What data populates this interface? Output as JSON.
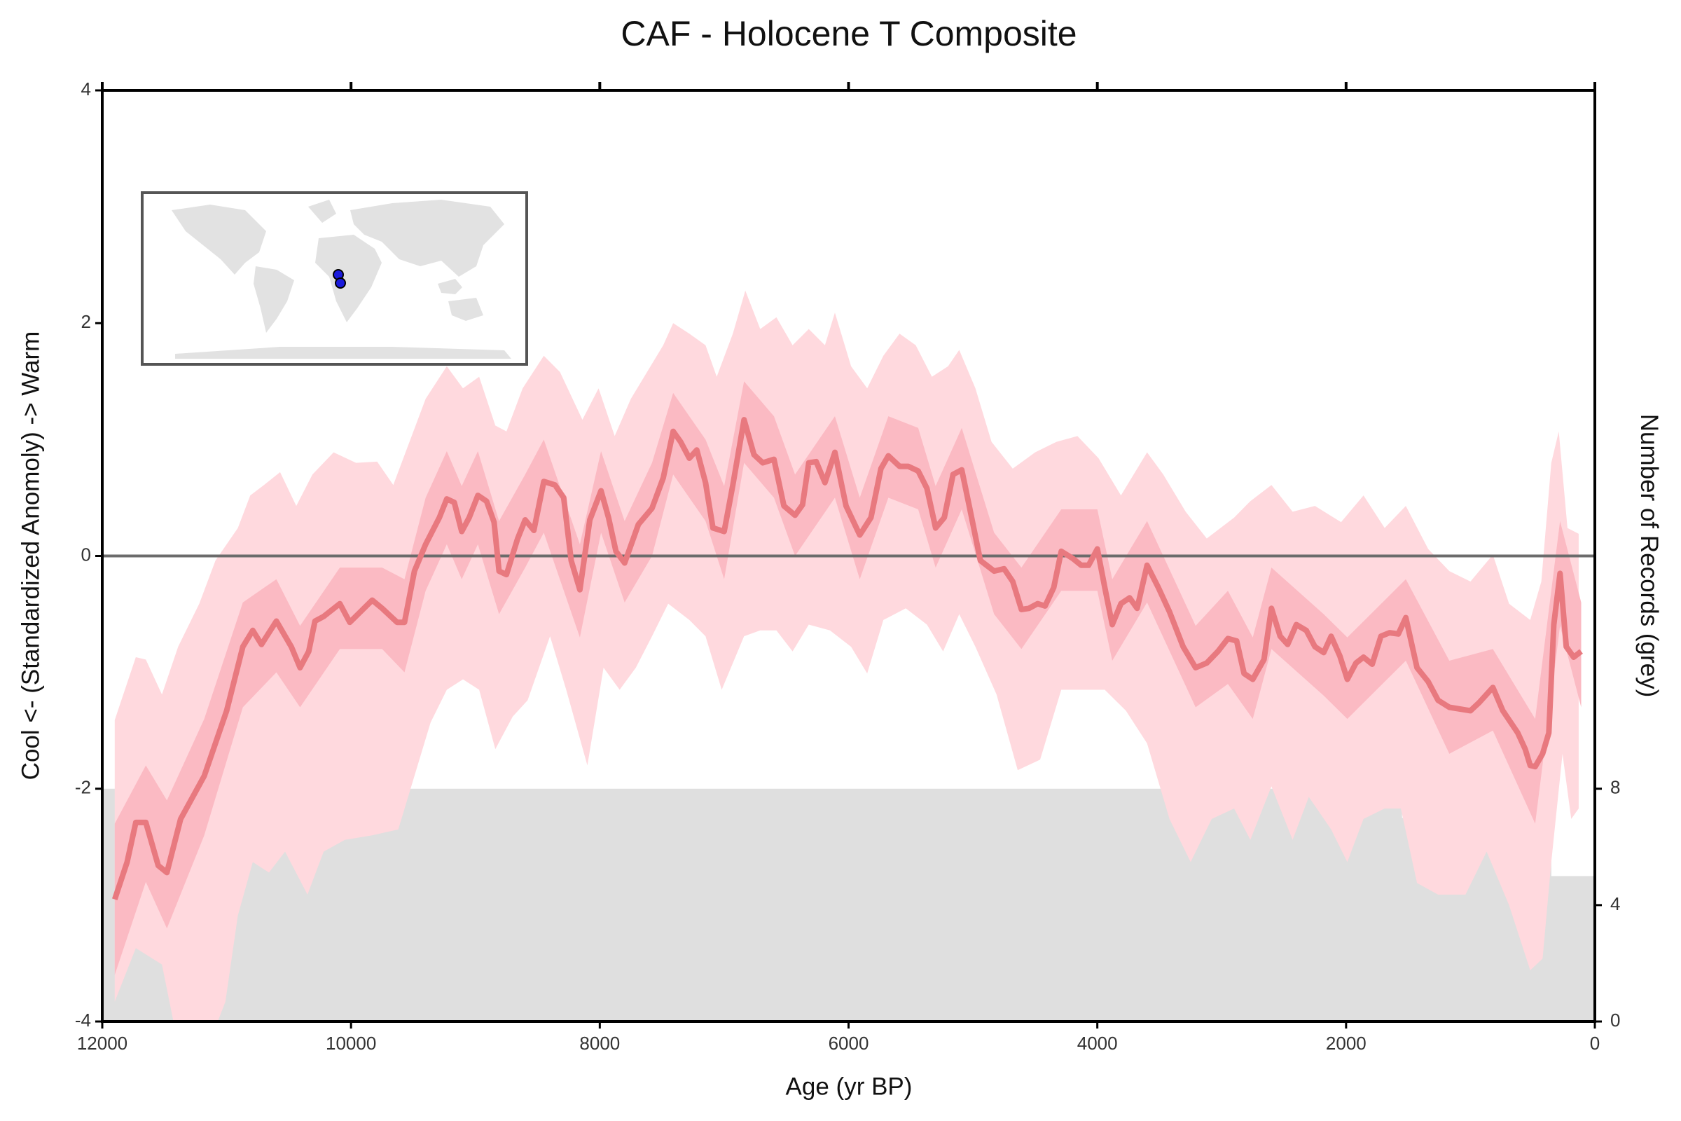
{
  "chart_data": {
    "type": "line",
    "title": "CAF - Holocene T Composite",
    "xlabel": "Age (yr BP)",
    "ylabel": "Cool <- (Standardized Anomoly) -> Warm",
    "y2label": "Number of Records (grey)",
    "xlim": [
      12000,
      0
    ],
    "xticks": [
      12000,
      10000,
      8000,
      6000,
      4000,
      2000,
      0
    ],
    "ylim": [
      -4,
      4
    ],
    "yticks": [
      -4,
      -2,
      0,
      2,
      4
    ],
    "y2lim": [
      0,
      32
    ],
    "y2ticks": [
      0,
      4,
      8
    ],
    "reference_line": 0,
    "series": [
      {
        "kind": "step-area",
        "axis": "y2",
        "color": "#dfdfdf",
        "x": [
          12000,
          1550,
          350
        ],
        "values": [
          8,
          7,
          5
        ]
      },
      {
        "kind": "band",
        "color": "#ffd9de",
        "upper": {
          "x": [
            11900,
            11730,
            11650,
            11520,
            11390,
            11220,
            11090,
            10910,
            10810,
            10700,
            10570,
            10440,
            10310,
            10140,
            9960,
            9790,
            9660,
            9530,
            9400,
            9230,
            9100,
            8970,
            8840,
            8750,
            8620,
            8450,
            8320,
            8140,
            8010,
            7880,
            7750,
            7620,
            7490,
            7410,
            7280,
            7150,
            7060,
            6930,
            6830,
            6710,
            6580,
            6450,
            6320,
            6190,
            6110,
            5980,
            5850,
            5720,
            5590,
            5460,
            5330,
            5200,
            5110,
            4980,
            4850,
            4680,
            4500,
            4330,
            4160,
            3990,
            3810,
            3600,
            3470,
            3290,
            3120,
            2900,
            2770,
            2600,
            2430,
            2250,
            2040,
            1860,
            1690,
            1520,
            1340,
            1170,
            1000,
            820,
            690,
            520,
            430,
            350,
            290,
            220,
            130
          ],
          "values": [
            -1.41,
            -0.87,
            -0.89,
            -1.19,
            -0.78,
            -0.41,
            -0.04,
            0.24,
            0.52,
            0.61,
            0.72,
            0.43,
            0.7,
            0.89,
            0.8,
            0.81,
            0.61,
            0.98,
            1.35,
            1.63,
            1.44,
            1.54,
            1.12,
            1.07,
            1.44,
            1.72,
            1.58,
            1.17,
            1.44,
            1.03,
            1.35,
            1.58,
            1.81,
            2.0,
            1.91,
            1.81,
            1.54,
            1.91,
            2.28,
            1.95,
            2.05,
            1.81,
            1.95,
            1.81,
            2.09,
            1.63,
            1.44,
            1.72,
            1.91,
            1.81,
            1.54,
            1.63,
            1.77,
            1.44,
            0.98,
            0.75,
            0.89,
            0.98,
            1.03,
            0.84,
            0.52,
            0.89,
            0.7,
            0.38,
            0.15,
            0.33,
            0.47,
            0.61,
            0.38,
            0.43,
            0.29,
            0.52,
            0.24,
            0.43,
            0.06,
            -0.13,
            -0.22,
            0.01,
            -0.41,
            -0.55,
            -0.22,
            0.8,
            1.07,
            0.24,
            0.19
          ]
        },
        "lower": {
          "x": [
            11900,
            11730,
            11520,
            11390,
            11180,
            11010,
            10910,
            10790,
            10660,
            10530,
            10350,
            10220,
            10050,
            9830,
            9620,
            9490,
            9360,
            9230,
            9100,
            8970,
            8840,
            8700,
            8580,
            8400,
            8270,
            8100,
            7970,
            7840,
            7710,
            7580,
            7450,
            7280,
            7150,
            7020,
            6840,
            6710,
            6580,
            6450,
            6320,
            6150,
            5980,
            5850,
            5720,
            5540,
            5370,
            5240,
            5110,
            4980,
            4810,
            4640,
            4460,
            4290,
            4120,
            3940,
            3770,
            3600,
            3420,
            3250,
            3080,
            2900,
            2770,
            2600,
            2430,
            2300,
            2120,
            1990,
            1860,
            1690,
            1560,
            1430,
            1260,
            1040,
            870,
            690,
            520,
            420,
            350,
            260,
            190,
            130
          ],
          "values": [
            -3.83,
            -3.37,
            -3.51,
            -4.2,
            -4.3,
            -3.83,
            -3.09,
            -2.63,
            -2.72,
            -2.54,
            -2.91,
            -2.54,
            -2.44,
            -2.4,
            -2.35,
            -1.89,
            -1.43,
            -1.15,
            -1.06,
            -1.15,
            -1.66,
            -1.38,
            -1.24,
            -0.69,
            -1.15,
            -1.8,
            -0.96,
            -1.15,
            -0.96,
            -0.69,
            -0.41,
            -0.55,
            -0.69,
            -1.15,
            -0.69,
            -0.64,
            -0.64,
            -0.82,
            -0.59,
            -0.64,
            -0.78,
            -1.01,
            -0.55,
            -0.45,
            -0.59,
            -0.82,
            -0.5,
            -0.78,
            -1.19,
            -1.84,
            -1.75,
            -1.15,
            -1.15,
            -1.15,
            -1.33,
            -1.61,
            -2.26,
            -2.63,
            -2.26,
            -2.17,
            -2.44,
            -1.98,
            -2.44,
            -2.07,
            -2.35,
            -2.63,
            -2.26,
            -2.17,
            -2.17,
            -2.81,
            -2.91,
            -2.91,
            -2.54,
            -3.0,
            -3.56,
            -3.46,
            -2.63,
            -1.7,
            -2.26,
            -2.17
          ]
        }
      },
      {
        "kind": "band",
        "color": "#fbbac3",
        "upper": {
          "x": [
            11900,
            11650,
            11480,
            11180,
            10870,
            10600,
            10410,
            10090,
            9750,
            9570,
            9400,
            9230,
            9110,
            8980,
            8810,
            8600,
            8450,
            8160,
            7990,
            7800,
            7580,
            7410,
            7150,
            7000,
            6840,
            6600,
            6430,
            6110,
            5910,
            5680,
            5440,
            5300,
            5090,
            4830,
            4610,
            4290,
            4000,
            3880,
            3600,
            3210,
            2950,
            2750,
            2600,
            2180,
            1990,
            1520,
            1170,
            820,
            480,
            280,
            110
          ],
          "values": [
            -2.3,
            -1.8,
            -2.1,
            -1.4,
            -0.4,
            -0.2,
            -0.6,
            -0.1,
            -0.1,
            -0.2,
            0.5,
            0.9,
            0.6,
            0.9,
            0.3,
            0.7,
            1.0,
            0.1,
            0.9,
            0.3,
            0.8,
            1.4,
            1.0,
            0.6,
            1.5,
            1.2,
            0.7,
            1.2,
            0.5,
            1.2,
            1.1,
            0.6,
            1.1,
            0.2,
            -0.1,
            0.4,
            0.4,
            -0.2,
            0.3,
            -0.6,
            -0.3,
            -0.7,
            -0.1,
            -0.5,
            -0.7,
            -0.2,
            -0.9,
            -0.8,
            -1.4,
            0.3,
            -0.4
          ]
        },
        "lower": {
          "x": [
            11900,
            11650,
            11480,
            11180,
            10870,
            10600,
            10410,
            10090,
            9750,
            9570,
            9400,
            9230,
            9110,
            8980,
            8810,
            8600,
            8450,
            8160,
            7990,
            7800,
            7580,
            7410,
            7150,
            7000,
            6840,
            6600,
            6430,
            6110,
            5910,
            5680,
            5440,
            5300,
            5090,
            4830,
            4610,
            4290,
            4000,
            3880,
            3600,
            3210,
            2950,
            2750,
            2600,
            2180,
            1990,
            1520,
            1170,
            820,
            480,
            280,
            110
          ],
          "values": [
            -3.6,
            -2.8,
            -3.2,
            -2.4,
            -1.3,
            -1.0,
            -1.3,
            -0.8,
            -0.8,
            -1.0,
            -0.3,
            0.1,
            -0.2,
            0.1,
            -0.5,
            -0.1,
            0.2,
            -0.7,
            0.2,
            -0.4,
            0.0,
            0.7,
            0.3,
            -0.2,
            0.8,
            0.5,
            0.0,
            0.5,
            -0.2,
            0.5,
            0.4,
            -0.1,
            0.4,
            -0.5,
            -0.8,
            -0.3,
            -0.3,
            -0.9,
            -0.4,
            -1.3,
            -1.1,
            -1.4,
            -0.8,
            -1.2,
            -1.4,
            -0.9,
            -1.7,
            -1.5,
            -2.3,
            -0.6,
            -1.3
          ]
        }
      },
      {
        "kind": "line",
        "color": "#e8797f",
        "x": [
          11900,
          11800,
          11730,
          11650,
          11550,
          11480,
          11370,
          11180,
          11000,
          10870,
          10790,
          10720,
          10600,
          10480,
          10410,
          10340,
          10290,
          10220,
          10090,
          10010,
          9830,
          9750,
          9630,
          9570,
          9490,
          9400,
          9290,
          9230,
          9170,
          9110,
          9050,
          8980,
          8910,
          8850,
          8810,
          8750,
          8660,
          8600,
          8530,
          8450,
          8360,
          8290,
          8230,
          8160,
          8080,
          7990,
          7930,
          7870,
          7800,
          7690,
          7580,
          7490,
          7410,
          7350,
          7280,
          7220,
          7150,
          7090,
          7000,
          6930,
          6840,
          6760,
          6690,
          6600,
          6520,
          6430,
          6370,
          6320,
          6260,
          6190,
          6110,
          6020,
          5910,
          5820,
          5740,
          5680,
          5590,
          5520,
          5440,
          5370,
          5300,
          5230,
          5160,
          5090,
          5030,
          4940,
          4830,
          4750,
          4680,
          4610,
          4550,
          4480,
          4420,
          4350,
          4290,
          4200,
          4130,
          4070,
          4000,
          3940,
          3880,
          3810,
          3740,
          3680,
          3600,
          3510,
          3420,
          3310,
          3210,
          3120,
          3030,
          2950,
          2880,
          2820,
          2750,
          2660,
          2600,
          2530,
          2470,
          2400,
          2320,
          2250,
          2180,
          2120,
          2050,
          1990,
          1920,
          1860,
          1790,
          1720,
          1650,
          1580,
          1520,
          1430,
          1340,
          1260,
          1170,
          1000,
          930,
          820,
          740,
          620,
          560,
          520,
          480,
          420,
          370,
          330,
          280,
          230,
          170,
          110
        ],
        "values": [
          -2.95,
          -2.63,
          -2.29,
          -2.29,
          -2.66,
          -2.72,
          -2.26,
          -1.89,
          -1.33,
          -0.78,
          -0.64,
          -0.76,
          -0.56,
          -0.78,
          -0.96,
          -0.82,
          -0.56,
          -0.52,
          -0.41,
          -0.57,
          -0.38,
          -0.45,
          -0.57,
          -0.57,
          -0.13,
          0.1,
          0.33,
          0.49,
          0.46,
          0.21,
          0.33,
          0.52,
          0.47,
          0.29,
          -0.13,
          -0.16,
          0.15,
          0.31,
          0.22,
          0.64,
          0.61,
          0.5,
          -0.04,
          -0.29,
          0.31,
          0.56,
          0.33,
          0.04,
          -0.06,
          0.27,
          0.41,
          0.67,
          1.07,
          0.98,
          0.84,
          0.91,
          0.63,
          0.24,
          0.21,
          0.61,
          1.17,
          0.87,
          0.8,
          0.83,
          0.43,
          0.35,
          0.44,
          0.8,
          0.81,
          0.63,
          0.89,
          0.43,
          0.18,
          0.33,
          0.75,
          0.86,
          0.77,
          0.77,
          0.73,
          0.58,
          0.24,
          0.33,
          0.7,
          0.74,
          0.43,
          -0.04,
          -0.13,
          -0.11,
          -0.22,
          -0.46,
          -0.45,
          -0.41,
          -0.43,
          -0.27,
          0.04,
          -0.02,
          -0.08,
          -0.08,
          0.06,
          -0.27,
          -0.59,
          -0.41,
          -0.36,
          -0.45,
          -0.08,
          -0.27,
          -0.48,
          -0.78,
          -0.96,
          -0.92,
          -0.82,
          -0.71,
          -0.73,
          -1.01,
          -1.06,
          -0.89,
          -0.45,
          -0.69,
          -0.76,
          -0.59,
          -0.64,
          -0.78,
          -0.83,
          -0.69,
          -0.86,
          -1.06,
          -0.92,
          -0.87,
          -0.93,
          -0.69,
          -0.66,
          -0.67,
          -0.53,
          -0.96,
          -1.08,
          -1.24,
          -1.3,
          -1.33,
          -1.26,
          -1.13,
          -1.33,
          -1.52,
          -1.66,
          -1.8,
          -1.81,
          -1.7,
          -1.52,
          -0.59,
          -0.15,
          -0.78,
          -0.87,
          -0.82
        ]
      }
    ]
  }
}
